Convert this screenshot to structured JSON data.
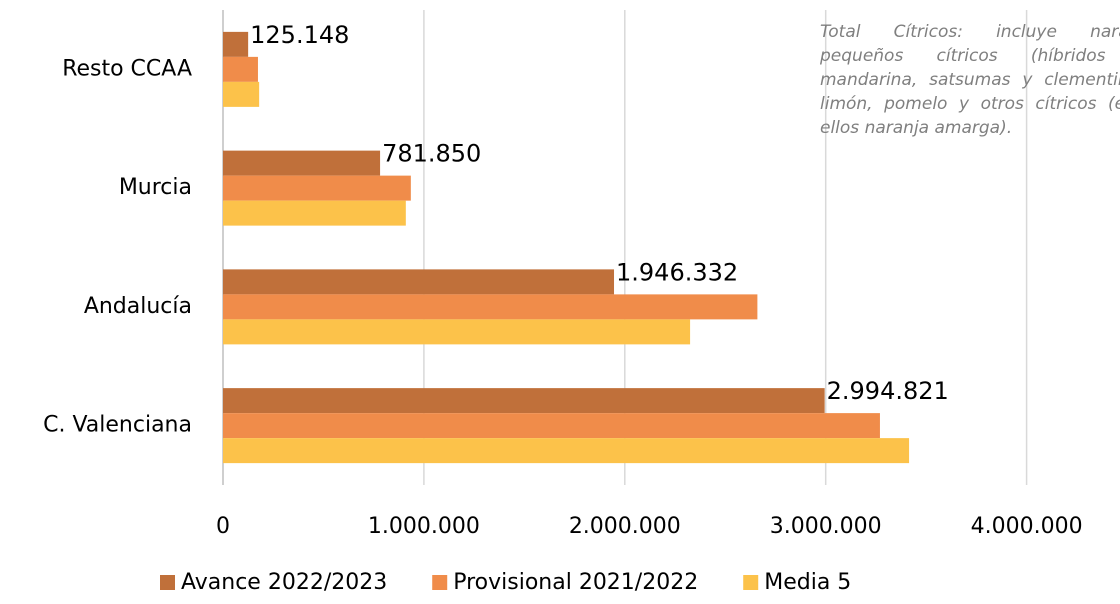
{
  "chart_data": {
    "type": "bar",
    "orientation": "horizontal",
    "categories": [
      "Resto CCAA",
      "Murcia",
      "Andalucía",
      "C. Valenciana"
    ],
    "series": [
      {
        "name": "Avance 2022/2023",
        "color": "#c0703a",
        "values": [
          125148,
          781850,
          1946332,
          2994821
        ],
        "value_labels": [
          "125.148",
          "781.850",
          "1.946.332",
          "2.994.821"
        ]
      },
      {
        "name": "Provisional 2021/2022",
        "color": "#f08c4a",
        "values": [
          174000,
          935000,
          2660000,
          3270000
        ]
      },
      {
        "name": "Media 5",
        "color": "#fcc24a",
        "values": [
          180000,
          910000,
          2325000,
          3415000
        ]
      }
    ],
    "xlim": [
      0,
      4450000
    ],
    "xticks": [
      0,
      {
        "value": 1000000,
        "label": "1.000.000"
      },
      {
        "value": 2000000,
        "label": "2.000.000"
      },
      {
        "value": 3000000,
        "label": "3.000.000"
      },
      {
        "value": 4000000,
        "label": "4.000.000"
      }
    ],
    "grid": true,
    "legend": "bottom",
    "annotation": "Total Cítricos: incluye naranja, pequeños cítricos (híbridos de mandarina, satsumas y clementinas), limón, pomelo y otros cítricos (entre ellos naranja amarga)."
  }
}
